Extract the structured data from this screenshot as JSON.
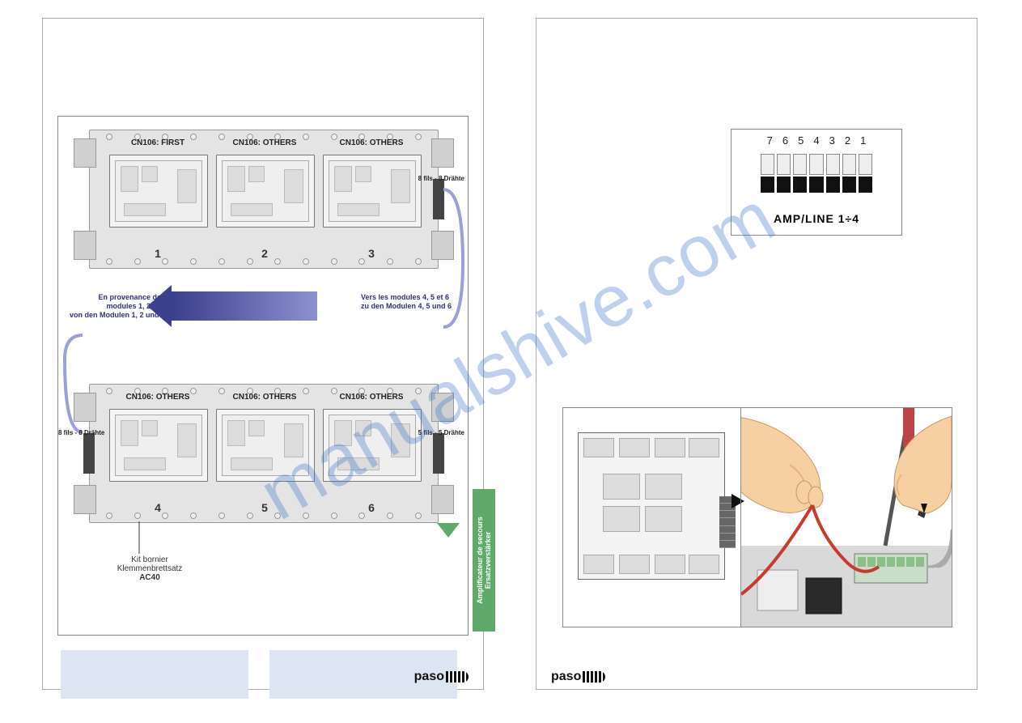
{
  "watermark": "manualshive.com",
  "brand": "paso",
  "left_page": {
    "rack1": {
      "modules": [
        {
          "title": "CN106: FIRST",
          "num": "1"
        },
        {
          "title": "CN106: OTHERS",
          "num": "2"
        },
        {
          "title": "CN106: OTHERS",
          "num": "3"
        }
      ],
      "conn_r_label": "8 fils - 8 Drähte"
    },
    "rack2": {
      "modules": [
        {
          "title": "CN106: OTHERS",
          "num": "4"
        },
        {
          "title": "CN106: OTHERS",
          "num": "5"
        },
        {
          "title": "CN106: OTHERS",
          "num": "6"
        }
      ],
      "conn_l_label": "8 fils - 8 Drähte",
      "conn_r_label": "5 fils - 5 Drähte"
    },
    "flow_left_text": "En provenance des modules 1, 2 et 3\nvon den Modulen 1, 2 und 3",
    "flow_right_text": "Vers les modules 4, 5 et 6\nzu den Modulen 4, 5 und 6",
    "kit_label_line1": "Kit bornier",
    "kit_label_line2": "Klemmenbrettsatz",
    "kit_label_bold": "AC40",
    "amp_label": "Amplificateur de secours\nErsatzverstärker"
  },
  "right_page": {
    "terminal": {
      "numbers": [
        "7",
        "6",
        "5",
        "4",
        "3",
        "2",
        "1"
      ],
      "title": "AMP/LINE 1÷4"
    }
  },
  "colors": {
    "watermark": "rgba(70,120,200,0.35)",
    "note_bg": "#dde4f2",
    "arrow_fill": "#3c3f8a",
    "arrow_fill_end": "#8d90d0",
    "amp_green": "#5faa6a",
    "skin": "#f6cfa3",
    "skin_shadow": "#e4b581",
    "wire_red": "#c83a2f",
    "terminal_green": "#8bc08b",
    "flow_text": "#303080"
  }
}
